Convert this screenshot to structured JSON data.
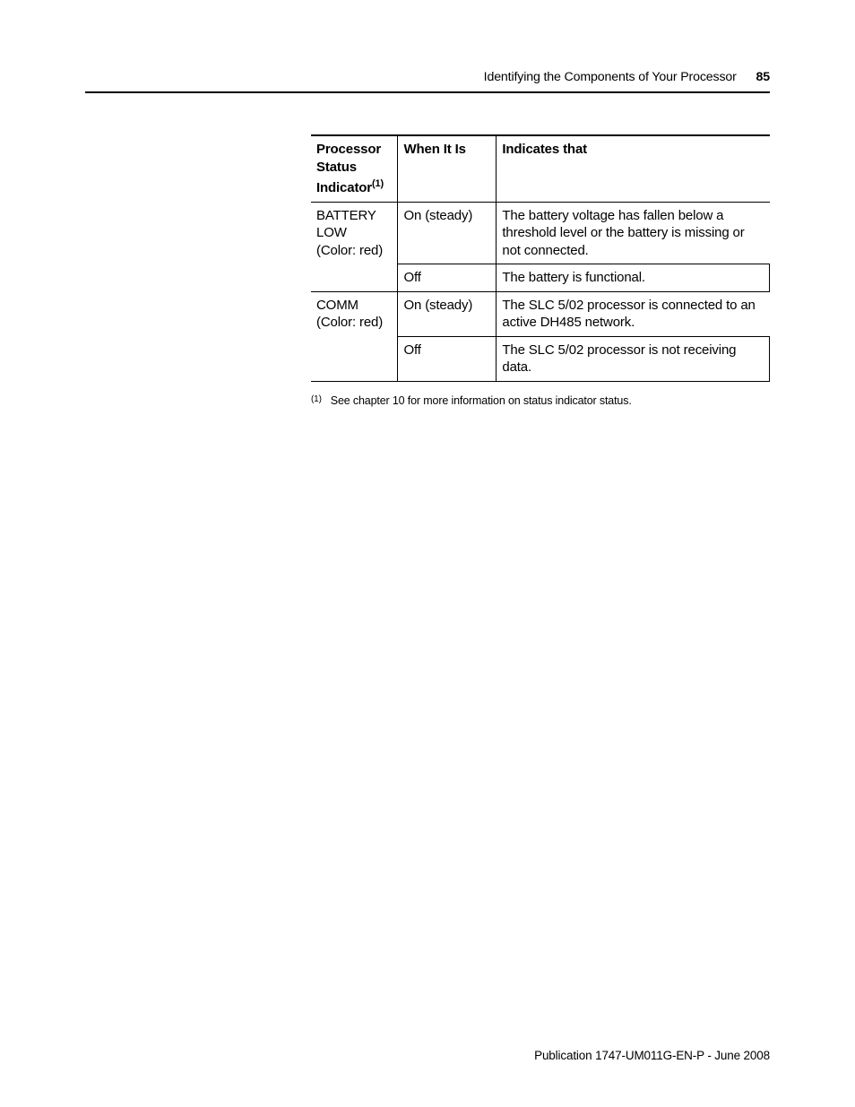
{
  "header": {
    "title": "Identifying the Components of Your Processor",
    "page_number": "85"
  },
  "table": {
    "columns": {
      "col1_line1": "Processor",
      "col1_line2": "Status",
      "col1_line3_prefix": "Indicator",
      "col1_line3_sup": "(1)",
      "col2": "When It Is",
      "col3": "Indicates that"
    },
    "rows": [
      {
        "indicator_line1": "BATTERY LOW",
        "indicator_line2": "(Color: red)",
        "when": "On (steady)",
        "desc": "The battery voltage has fallen below a threshold level or the battery is missing or not connected.",
        "rowspan": 2
      },
      {
        "when": "Off",
        "desc": "The battery is functional."
      },
      {
        "indicator_line1": "COMM",
        "indicator_line2": "(Color: red)",
        "when": "On (steady)",
        "desc": "The SLC 5/02 processor is connected to an active DH485 network.",
        "rowspan": 2
      },
      {
        "when": "Off",
        "desc": "The SLC 5/02 processor is not receiving data."
      }
    ]
  },
  "footnote": {
    "marker": "(1)",
    "text": "See chapter 10 for more information on status indicator status."
  },
  "footer": {
    "text": "Publication 1747-UM011G-EN-P - June 2008"
  },
  "colors": {
    "text": "#000000",
    "background": "#ffffff",
    "rule": "#000000"
  }
}
